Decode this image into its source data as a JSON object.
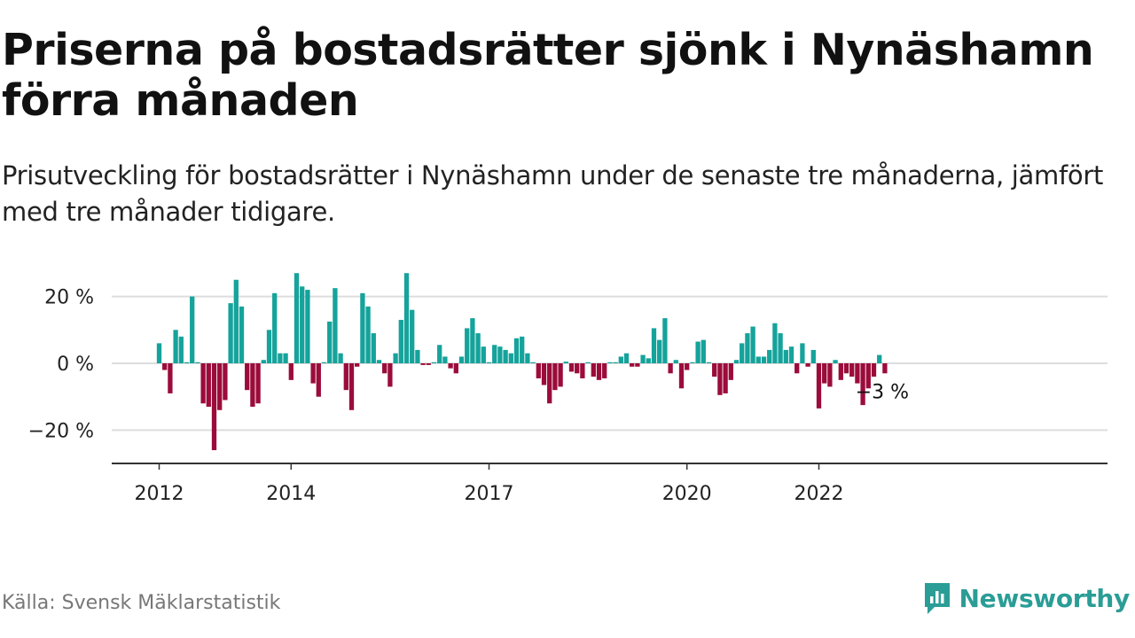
{
  "header": {
    "title": "Priserna på bostadsrätter sjönk i Nynäshamn förra månaden",
    "subtitle": "Prisutveckling för bostadsrätter i Nynäshamn under de senaste tre månaderna, jämfört med tre månader tidigare."
  },
  "footer": {
    "source": "Källa: Svensk Mäklarstatistik",
    "brand": "Newsworthy"
  },
  "colors": {
    "positive": "#15a39b",
    "negative": "#9b0c3b",
    "grid": "#dddddd",
    "axis": "#333333",
    "text": "#111111"
  },
  "chart_data": {
    "type": "bar",
    "title": "Priserna på bostadsrätter sjönk i Nynäshamn förra månaden",
    "xlabel": "",
    "ylabel": "",
    "x_unit": "month",
    "start": "2012-01",
    "end": "2022-12",
    "ylim": [
      -30,
      28
    ],
    "yticks": [
      {
        "value": 20,
        "label": "20 %"
      },
      {
        "value": 0,
        "label": "0 %"
      },
      {
        "value": -20,
        "label": "−20 %"
      }
    ],
    "xticks": [
      {
        "month": "2012-01",
        "label": "2012"
      },
      {
        "month": "2014-01",
        "label": "2014"
      },
      {
        "month": "2017-01",
        "label": "2017"
      },
      {
        "month": "2020-01",
        "label": "2020"
      },
      {
        "month": "2022-01",
        "label": "2022"
      }
    ],
    "grid": true,
    "last_value_label": "−3 %",
    "values": [
      6,
      -2,
      -9,
      10,
      8,
      0,
      20,
      0,
      -12,
      -13,
      -26,
      -14,
      -11,
      18,
      25,
      17,
      -8,
      -13,
      -12,
      1,
      10,
      21,
      3,
      3,
      -5,
      27,
      23,
      22,
      -6,
      -10,
      0.3,
      12.5,
      22.5,
      3,
      -8,
      -14,
      -1,
      21,
      17,
      9,
      1,
      -3,
      -7,
      3,
      13,
      27,
      16,
      4,
      -0.5,
      -0.5,
      0,
      5.5,
      2,
      -1.5,
      -3,
      2,
      10.5,
      13.5,
      9,
      5,
      0.3,
      5.5,
      5,
      4,
      3,
      7.5,
      8,
      3,
      0.3,
      -4.5,
      -6.5,
      -12,
      -8,
      -7,
      0.5,
      -2.5,
      -3,
      -4.5,
      0,
      -4,
      -5,
      -4.5,
      0,
      0,
      2,
      3,
      -1,
      -1,
      2.5,
      1.5,
      10.5,
      7,
      13.5,
      -3,
      1,
      -7.5,
      -2,
      0,
      6.5,
      7,
      0,
      -4,
      -9.5,
      -9,
      -5,
      1,
      6,
      9,
      11,
      2,
      2,
      4,
      12,
      9,
      4,
      5,
      -3,
      6,
      -1,
      4,
      -13.5,
      -6,
      -7,
      1,
      -5,
      -3,
      -4,
      -6,
      -12.5,
      -7.5,
      -4,
      2.5,
      -3
    ]
  }
}
